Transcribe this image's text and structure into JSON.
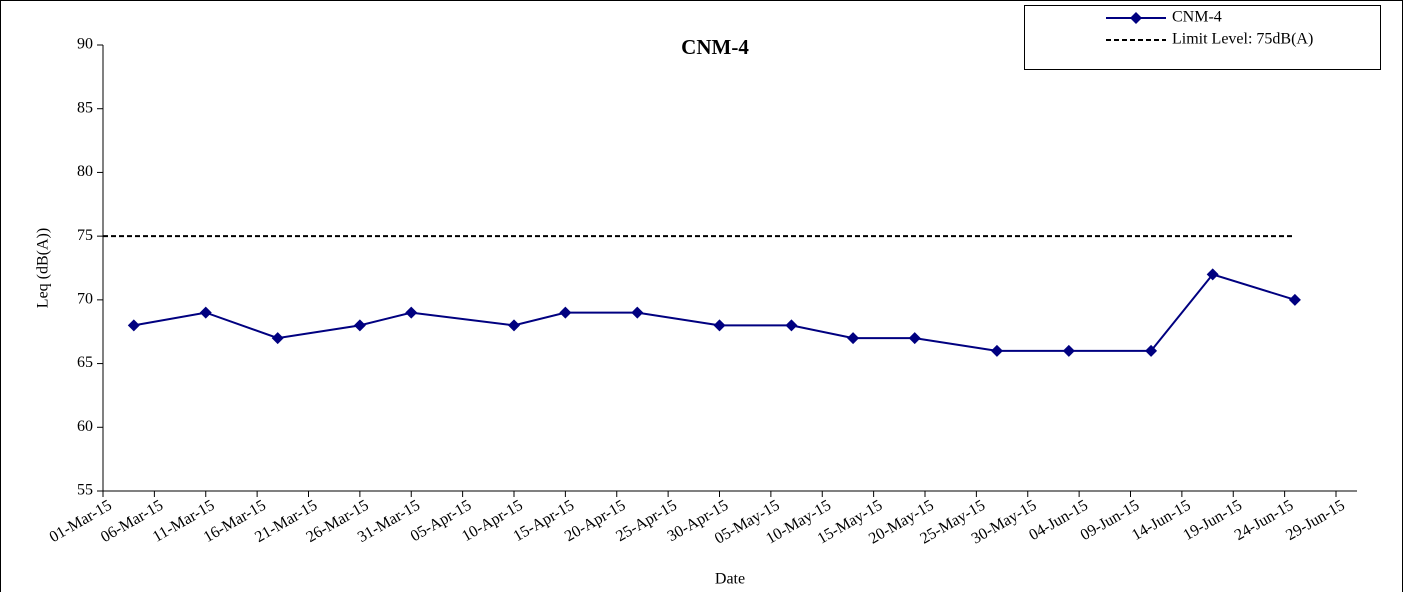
{
  "chart_data": {
    "type": "line",
    "title": "CNM-4",
    "x_label": "Date",
    "y_label": "Leq (dB(A))",
    "series": [
      {
        "name": "CNM-4",
        "color": "#000080",
        "line_style": "solid",
        "marker": "diamond",
        "x": [
          "2015-03-04",
          "2015-03-11",
          "2015-03-18",
          "2015-03-26",
          "2015-03-31",
          "2015-04-10",
          "2015-04-15",
          "2015-04-22",
          "2015-04-30",
          "2015-05-07",
          "2015-05-13",
          "2015-05-19",
          "2015-05-27",
          "2015-06-03",
          "2015-06-11",
          "2015-06-17",
          "2015-06-25"
        ],
        "values": [
          68,
          69,
          67,
          68,
          69,
          68,
          69,
          69,
          68,
          68,
          67,
          67,
          66,
          66,
          66,
          72,
          70
        ]
      },
      {
        "name": "Limit Level: 75dB(A)",
        "color": "#000000",
        "line_style": "dashed",
        "marker": null,
        "x": [
          "2015-03-01",
          "2015-06-25"
        ],
        "values": [
          75,
          75
        ]
      }
    ],
    "xlim": [
      "2015-03-01",
      "2015-06-29"
    ],
    "xticks": [
      {
        "value": "2015-03-01",
        "label": "01-Mar-15"
      },
      {
        "value": "2015-03-06",
        "label": "06-Mar-15"
      },
      {
        "value": "2015-03-11",
        "label": "11-Mar-15"
      },
      {
        "value": "2015-03-16",
        "label": "16-Mar-15"
      },
      {
        "value": "2015-03-21",
        "label": "21-Mar-15"
      },
      {
        "value": "2015-03-26",
        "label": "26-Mar-15"
      },
      {
        "value": "2015-03-31",
        "label": "31-Mar-15"
      },
      {
        "value": "2015-04-05",
        "label": "05-Apr-15"
      },
      {
        "value": "2015-04-10",
        "label": "10-Apr-15"
      },
      {
        "value": "2015-04-15",
        "label": "15-Apr-15"
      },
      {
        "value": "2015-04-20",
        "label": "20-Apr-15"
      },
      {
        "value": "2015-04-25",
        "label": "25-Apr-15"
      },
      {
        "value": "2015-04-30",
        "label": "30-Apr-15"
      },
      {
        "value": "2015-05-05",
        "label": "05-May-15"
      },
      {
        "value": "2015-05-10",
        "label": "10-May-15"
      },
      {
        "value": "2015-05-15",
        "label": "15-May-15"
      },
      {
        "value": "2015-05-20",
        "label": "20-May-15"
      },
      {
        "value": "2015-05-25",
        "label": "25-May-15"
      },
      {
        "value": "2015-05-30",
        "label": "30-May-15"
      },
      {
        "value": "2015-06-04",
        "label": "04-Jun-15"
      },
      {
        "value": "2015-06-09",
        "label": "09-Jun-15"
      },
      {
        "value": "2015-06-14",
        "label": "14-Jun-15"
      },
      {
        "value": "2015-06-19",
        "label": "19-Jun-15"
      },
      {
        "value": "2015-06-24",
        "label": "24-Jun-15"
      },
      {
        "value": "2015-06-29",
        "label": "29-Jun-15"
      }
    ],
    "ylim": [
      55,
      90
    ],
    "yticks": [
      55,
      60,
      65,
      70,
      75,
      80,
      85,
      90
    ],
    "grid": false,
    "legend": "top-right"
  }
}
